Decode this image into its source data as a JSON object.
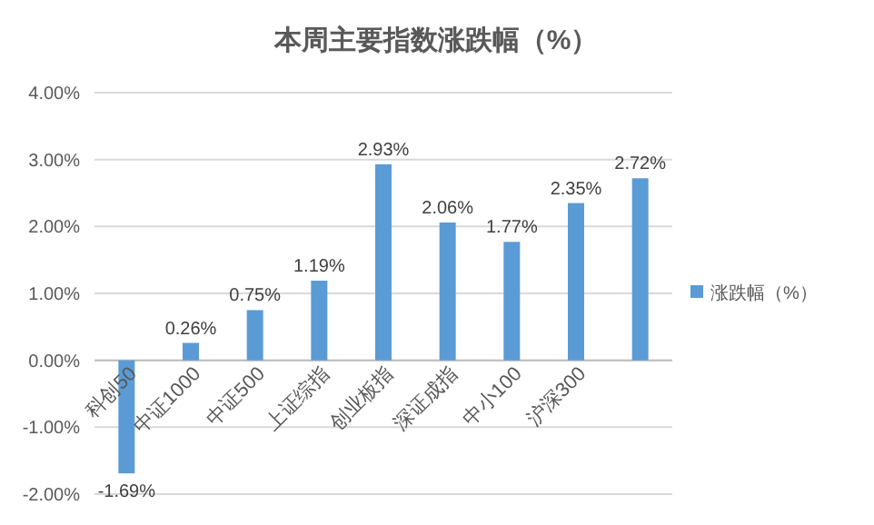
{
  "chart_data": {
    "type": "bar",
    "title": "本周主要指数涨跌幅（%）",
    "categories": [
      "科创50",
      "中证1000",
      "中证500",
      "上证综指",
      "创业板指",
      "深证成指",
      "中小100",
      "沪深300",
      null
    ],
    "series": [
      {
        "name": "涨跌幅（%）",
        "color": "#5b9bd5",
        "values": [
          -1.69,
          0.26,
          0.75,
          1.19,
          2.93,
          2.06,
          1.77,
          2.35,
          2.72
        ],
        "value_labels": [
          "-1.69%",
          "0.26%",
          "0.75%",
          "1.19%",
          "2.93%",
          "2.06%",
          "1.77%",
          "2.35%",
          "2.72%"
        ]
      }
    ],
    "ylim": [
      -2,
      4
    ],
    "yticks": [
      {
        "value": -2,
        "label": "-2.00%"
      },
      {
        "value": -1,
        "label": "-1.00%"
      },
      {
        "value": 0,
        "label": "0.00%"
      },
      {
        "value": 1,
        "label": "1.00%"
      },
      {
        "value": 2,
        "label": "2.00%"
      },
      {
        "value": 3,
        "label": "3.00%"
      },
      {
        "value": 4,
        "label": "4.00%"
      }
    ],
    "grid": "y",
    "legend": "right"
  }
}
